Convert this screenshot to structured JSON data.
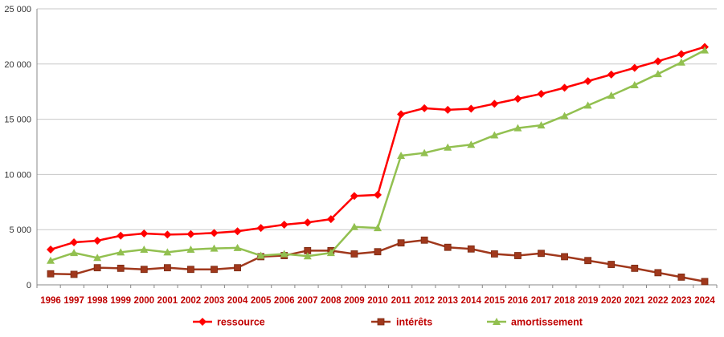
{
  "chart_data": {
    "type": "line",
    "title": "",
    "xlabel": "",
    "ylabel": "",
    "ylim": [
      0,
      25000
    ],
    "yticks": [
      0,
      5000,
      10000,
      15000,
      20000,
      25000
    ],
    "ytick_labels": [
      "0",
      "5 000",
      "10 000",
      "15 000",
      "20 000",
      "25 000"
    ],
    "grid": true,
    "legend_position": "bottom",
    "categories": [
      "1996",
      "1997",
      "1998",
      "1999",
      "2000",
      "2001",
      "2002",
      "2003",
      "2004",
      "2005",
      "2006",
      "2007",
      "2008",
      "2009",
      "2010",
      "2011",
      "2012",
      "2013",
      "2014",
      "2015",
      "2016",
      "2017",
      "2018",
      "2019",
      "2020",
      "2021",
      "2022",
      "2023",
      "2024"
    ],
    "series": [
      {
        "name": "ressource",
        "color": "#ff0000",
        "marker": "diamond",
        "values": [
          3200,
          3850,
          4000,
          4450,
          4650,
          4550,
          4600,
          4700,
          4850,
          5150,
          5450,
          5650,
          5950,
          8050,
          8150,
          15450,
          16000,
          15850,
          15950,
          16400,
          16850,
          17300,
          17850,
          18450,
          19050,
          19650,
          20250,
          20900,
          21550
        ]
      },
      {
        "name": "intérêts",
        "color": "#a0381c",
        "marker": "square",
        "values": [
          1000,
          950,
          1550,
          1500,
          1400,
          1550,
          1400,
          1400,
          1550,
          2550,
          2650,
          3100,
          3100,
          2800,
          3000,
          3800,
          4050,
          3400,
          3250,
          2800,
          2650,
          2850,
          2550,
          2200,
          1850,
          1500,
          1100,
          700,
          300
        ]
      },
      {
        "name": "amortissement",
        "color": "#92c050",
        "marker": "triangle",
        "values": [
          2200,
          2900,
          2450,
          2950,
          3200,
          2950,
          3200,
          3300,
          3350,
          2650,
          2800,
          2600,
          2900,
          5250,
          5150,
          11700,
          11950,
          12450,
          12700,
          13550,
          14200,
          14450,
          15300,
          16250,
          17150,
          18100,
          19100,
          20150,
          21250
        ]
      }
    ]
  }
}
